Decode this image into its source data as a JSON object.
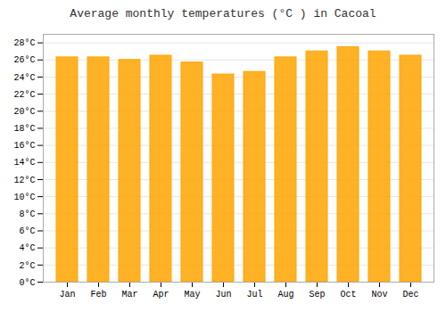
{
  "chart_data": {
    "type": "bar",
    "title": "Average monthly temperatures (°C ) in Cacoal",
    "categories": [
      "Jan",
      "Feb",
      "Mar",
      "Apr",
      "May",
      "Jun",
      "Jul",
      "Aug",
      "Sep",
      "Oct",
      "Nov",
      "Dec"
    ],
    "values": [
      26.3,
      26.3,
      26.0,
      26.5,
      25.7,
      24.3,
      24.6,
      26.3,
      27.0,
      27.5,
      27.0,
      26.5
    ],
    "color": "#FFA500",
    "ylim": [
      0,
      29
    ],
    "yticks": [
      {
        "value": 0,
        "label": "0°C"
      },
      {
        "value": 2,
        "label": "2°C"
      },
      {
        "value": 4,
        "label": "4°C"
      },
      {
        "value": 6,
        "label": "6°C"
      },
      {
        "value": 8,
        "label": "8°C"
      },
      {
        "value": 10,
        "label": "10°C"
      },
      {
        "value": 12,
        "label": "12°C"
      },
      {
        "value": 14,
        "label": "14°C"
      },
      {
        "value": 16,
        "label": "16°C"
      },
      {
        "value": 18,
        "label": "18°C"
      },
      {
        "value": 20,
        "label": "20°C"
      },
      {
        "value": 22,
        "label": "22°C"
      },
      {
        "value": 24,
        "label": "24°C"
      },
      {
        "value": 26,
        "label": "26°C"
      },
      {
        "value": 28,
        "label": "28°C"
      }
    ],
    "grid": true
  }
}
